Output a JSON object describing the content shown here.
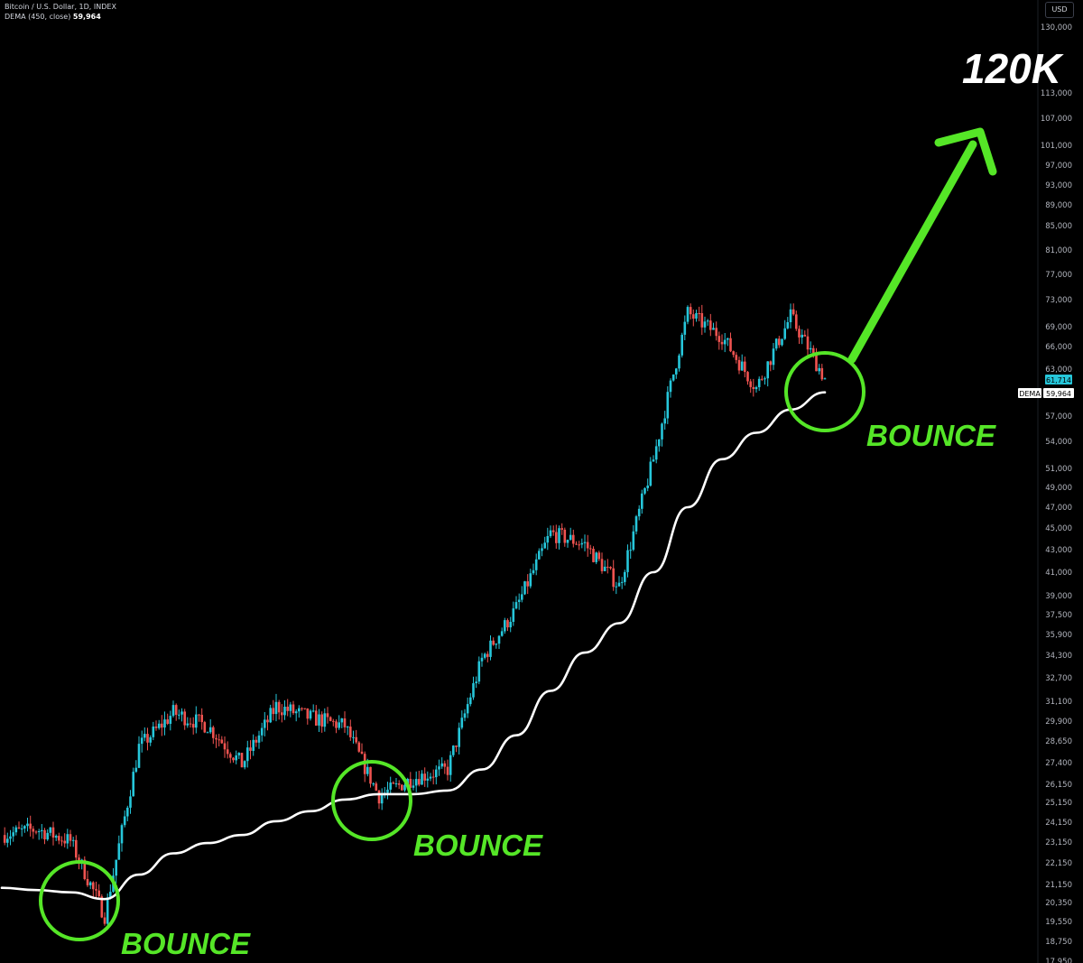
{
  "header": {
    "symbol_line": "Bitcoin / U.S. Dollar, 1D, INDEX",
    "indicator_label": "DEMA (450, close)",
    "indicator_value": "59,964"
  },
  "currency_button": "USD",
  "price_tags": {
    "last_price": "61,714",
    "dema_label": "DEMA",
    "dema_value": "59,964"
  },
  "annotations": {
    "bounces": [
      "BOUNCE",
      "BOUNCE",
      "BOUNCE"
    ],
    "target": "120K"
  },
  "colors": {
    "background": "#000000",
    "candle_up": "#26c6da",
    "candle_down": "#ef5350",
    "dema_line": "#ffffff",
    "annotation_green": "#55e627",
    "last_price_tag": "#26c6da"
  },
  "chart_data": {
    "type": "line",
    "title": "",
    "xlabel": "",
    "ylabel": "",
    "y_scale": "log",
    "ylim": [
      17950,
      130000
    ],
    "grid": false,
    "y_ticks": [
      "130,000",
      "113,000",
      "107,000",
      "101,000",
      "97,000",
      "93,000",
      "89,000",
      "85,000",
      "81,000",
      "77,000",
      "73,000",
      "69,000",
      "66,000",
      "63,000",
      "57,000",
      "54,000",
      "51,000",
      "49,000",
      "47,000",
      "45,000",
      "43,000",
      "41,000",
      "39,000",
      "37,500",
      "35,900",
      "34,300",
      "32,700",
      "31,100",
      "29,900",
      "28,650",
      "27,400",
      "26,150",
      "25,150",
      "24,150",
      "23,150",
      "22,150",
      "21,150",
      "20,350",
      "19,550",
      "18,750",
      "17,950"
    ],
    "series": [
      {
        "name": "DEMA (450, close)",
        "values": [
          21000,
          20900,
          20800,
          20500,
          21600,
          22600,
          23100,
          23500,
          24200,
          24700,
          25300,
          25600,
          25600,
          25800,
          27000,
          29000,
          31800,
          34500,
          36800,
          41000,
          47000,
          52000,
          55000,
          57800,
          59964
        ]
      },
      {
        "name": "Bitcoin / U.S. Dollar",
        "values": [
          23500,
          23800,
          23200,
          19800,
          28300,
          30400,
          29600,
          27300,
          30800,
          30100,
          29600,
          25500,
          26500,
          27000,
          34000,
          38000,
          44500,
          43500,
          39800,
          52000,
          71000,
          67500,
          60500,
          70500,
          61714
        ]
      }
    ]
  }
}
